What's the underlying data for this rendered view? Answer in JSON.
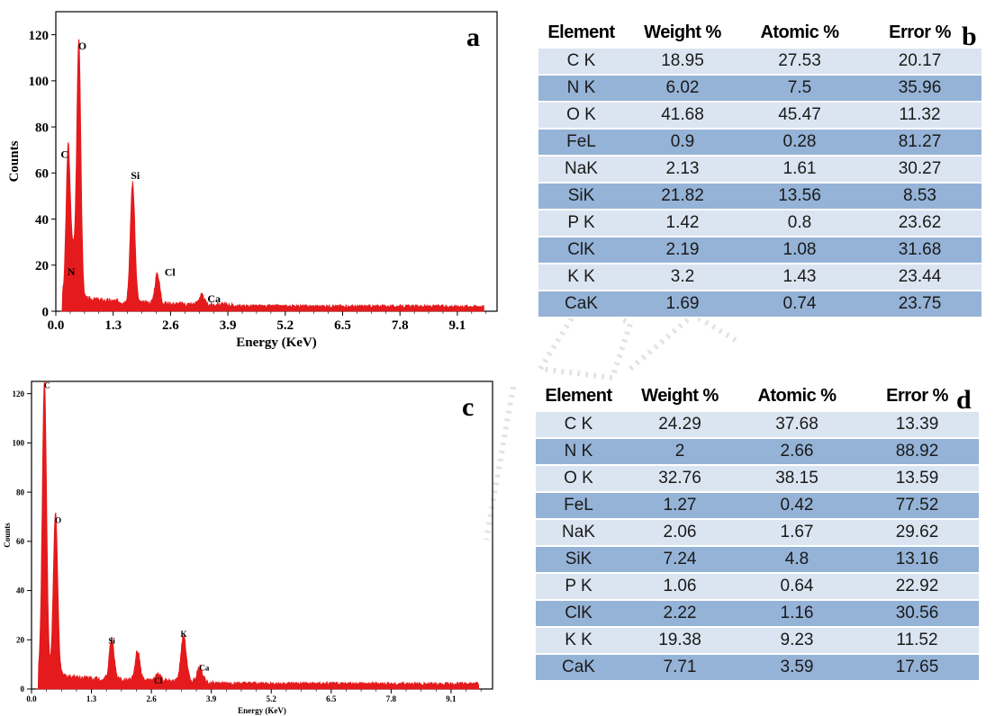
{
  "colors": {
    "spectrum": "#e41a1c",
    "row_light": "#dbe5f1",
    "row_dark": "#95b3d7"
  },
  "chart_data": [
    {
      "id": "a",
      "type": "line",
      "panel_letter": "a",
      "xlabel": "Energy (KeV)",
      "ylabel": "Counts",
      "xlim": [
        0,
        10
      ],
      "ylim": [
        0,
        130
      ],
      "xticks": [
        "0.0",
        "1.3",
        "2.6",
        "3.9",
        "5.2",
        "6.5",
        "7.8",
        "9.1"
      ],
      "xtick_values": [
        0,
        1.3,
        2.6,
        3.9,
        5.2,
        6.5,
        7.8,
        9.1
      ],
      "yticks": [
        "0",
        "20",
        "40",
        "60",
        "80",
        "100",
        "120"
      ],
      "ytick_values": [
        0,
        20,
        40,
        60,
        80,
        100,
        120
      ],
      "peaks": [
        {
          "label": "C",
          "x": 0.28,
          "y": 65
        },
        {
          "label": "N",
          "x": 0.39,
          "y": 18
        },
        {
          "label": "O",
          "x": 0.52,
          "y": 112
        },
        {
          "label": "Si",
          "x": 1.74,
          "y": 52
        },
        {
          "label": "Cl",
          "x": 2.3,
          "y": 13
        },
        {
          "label": "Ca",
          "x": 3.3,
          "y": 4
        }
      ]
    },
    {
      "id": "c",
      "type": "line",
      "panel_letter": "c",
      "xlabel": "Energy (KeV)",
      "ylabel": "Counts",
      "xlim": [
        0,
        10
      ],
      "ylim": [
        0,
        125
      ],
      "xticks": [
        "0.0",
        "1.3",
        "2.6",
        "3.9",
        "5.2",
        "6.5",
        "7.8",
        "9.1"
      ],
      "xtick_values": [
        0,
        1.3,
        2.6,
        3.9,
        5.2,
        6.5,
        7.8,
        9.1
      ],
      "yticks": [
        "0",
        "20",
        "40",
        "60",
        "80",
        "100",
        "120"
      ],
      "ytick_values": [
        0,
        20,
        40,
        60,
        80,
        100,
        120
      ],
      "peaks": [
        {
          "label": "C",
          "x": 0.28,
          "y": 120
        },
        {
          "label": "O",
          "x": 0.52,
          "y": 66
        },
        {
          "label": "Si",
          "x": 1.74,
          "y": 17
        },
        {
          "label": "",
          "x": 2.3,
          "y": 12
        },
        {
          "label": "Cl",
          "x": 2.75,
          "y": 3
        },
        {
          "label": "K",
          "x": 3.3,
          "y": 19
        },
        {
          "label": "Ca",
          "x": 3.65,
          "y": 6
        }
      ]
    }
  ],
  "table_b": {
    "letter": "b",
    "headers": [
      "Element",
      "Weight %",
      "Atomic %",
      "Error %"
    ],
    "rows": [
      [
        "C K",
        "18.95",
        "27.53",
        "20.17"
      ],
      [
        "N K",
        "6.02",
        "7.5",
        "35.96"
      ],
      [
        "O K",
        "41.68",
        "45.47",
        "11.32"
      ],
      [
        "FeL",
        "0.9",
        "0.28",
        "81.27"
      ],
      [
        "NaK",
        "2.13",
        "1.61",
        "30.27"
      ],
      [
        "SiK",
        "21.82",
        "13.56",
        "8.53"
      ],
      [
        "P K",
        "1.42",
        "0.8",
        "23.62"
      ],
      [
        "ClK",
        "2.19",
        "1.08",
        "31.68"
      ],
      [
        "K K",
        "3.2",
        "1.43",
        "23.44"
      ],
      [
        "CaK",
        "1.69",
        "0.74",
        "23.75"
      ]
    ]
  },
  "table_d": {
    "letter": "d",
    "headers": [
      "Element",
      "Weight %",
      "Atomic %",
      "Error %"
    ],
    "rows": [
      [
        "C K",
        "24.29",
        "37.68",
        "13.39"
      ],
      [
        "N K",
        "2",
        "2.66",
        "88.92"
      ],
      [
        "O K",
        "32.76",
        "38.15",
        "13.59"
      ],
      [
        "FeL",
        "1.27",
        "0.42",
        "77.52"
      ],
      [
        "NaK",
        "2.06",
        "1.67",
        "29.62"
      ],
      [
        "SiK",
        "7.24",
        "4.8",
        "13.16"
      ],
      [
        "P K",
        "1.06",
        "0.64",
        "22.92"
      ],
      [
        "ClK",
        "2.22",
        "1.16",
        "30.56"
      ],
      [
        "K K",
        "19.38",
        "9.23",
        "11.52"
      ],
      [
        "CaK",
        "7.71",
        "3.59",
        "17.65"
      ]
    ]
  }
}
